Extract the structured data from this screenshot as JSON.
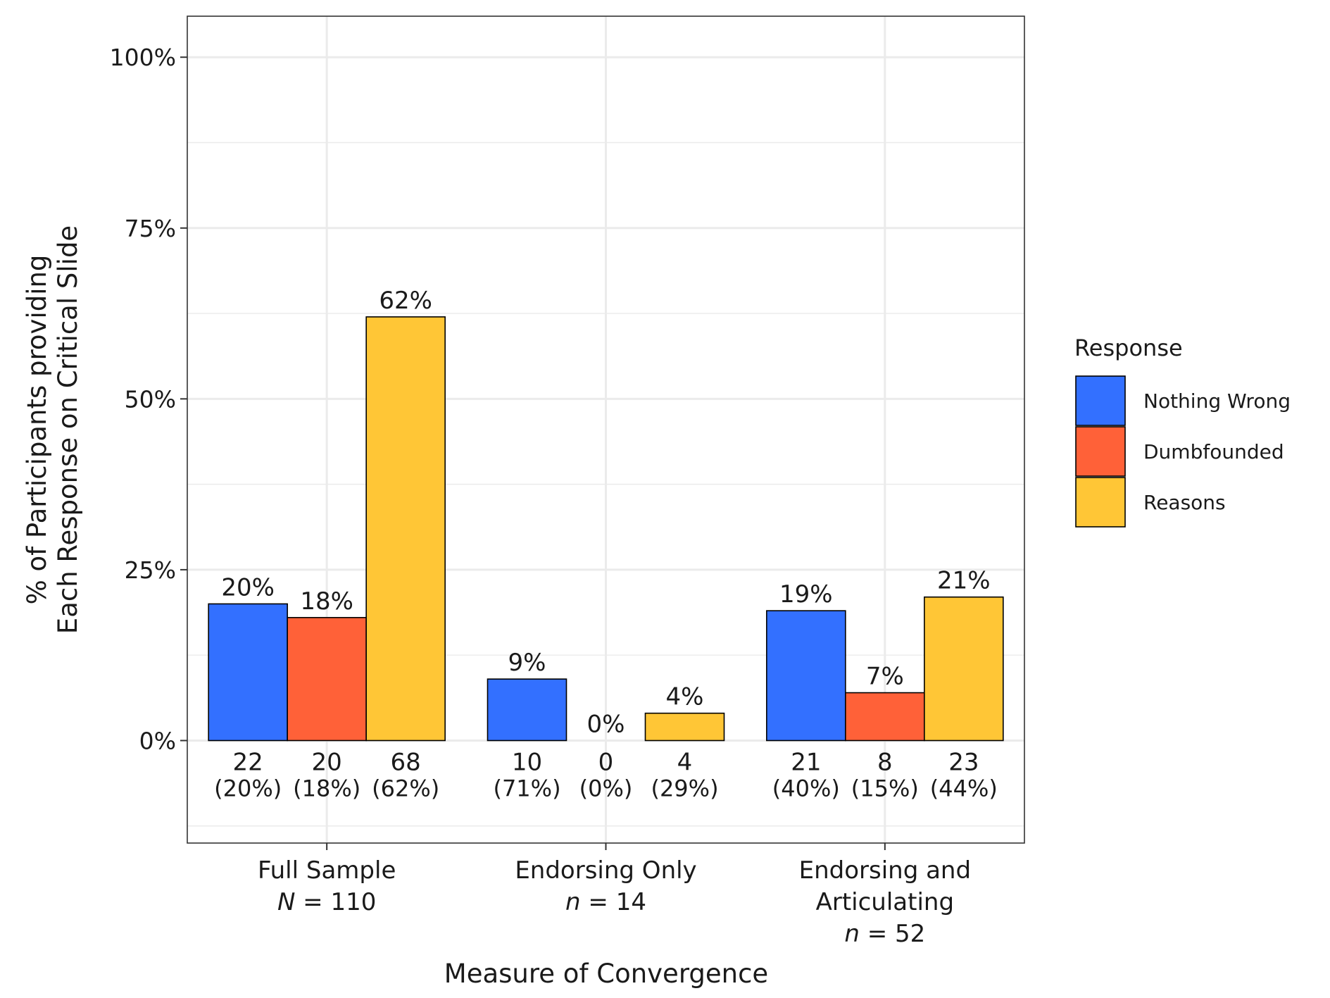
{
  "chart_data": {
    "type": "bar",
    "categories": [
      {
        "line1": "Full Sample",
        "n_symbol": "N",
        "n_text": " = 110"
      },
      {
        "line1": "Endorsing Only",
        "n_symbol": "n",
        "n_text": " = 14"
      },
      {
        "line1": "Endorsing and",
        "line2": "Articulating",
        "n_symbol": "n",
        "n_text": " = 52"
      }
    ],
    "series": [
      {
        "name": "Nothing Wrong",
        "color": "#3370FF",
        "values": [
          20,
          9,
          19
        ],
        "counts": [
          "22",
          "10",
          "21"
        ],
        "pcts": [
          "(20%)",
          "(71%)",
          "(40%)"
        ]
      },
      {
        "name": "Dumbfounded",
        "color": "#FF6138",
        "values": [
          18,
          0,
          7
        ],
        "counts": [
          "20",
          "0",
          "8"
        ],
        "pcts": [
          "(18%)",
          "(0%)",
          "(15%)"
        ]
      },
      {
        "name": "Reasons",
        "color": "#FFC636",
        "values": [
          62,
          4,
          21
        ],
        "counts": [
          "68",
          "4",
          "23"
        ],
        "pcts": [
          "(62%)",
          "(29%)",
          "(44%)"
        ]
      }
    ],
    "bar_labels": [
      [
        "20%",
        "9%",
        "19%"
      ],
      [
        "18%",
        "0%",
        "7%"
      ],
      [
        "62%",
        "4%",
        "21%"
      ]
    ],
    "yticks": [
      0,
      25,
      50,
      75,
      100
    ],
    "ytick_labels": [
      "0%",
      "25%",
      "50%",
      "75%",
      "100%"
    ],
    "ylim": [
      -15,
      106
    ],
    "xlabel": "Measure of Convergence",
    "ylabel_line1": "% of Participants providing",
    "ylabel_line2": "Each Response on Critical Slide",
    "legend_title": "Response",
    "legend_position": "right",
    "grid": true
  }
}
